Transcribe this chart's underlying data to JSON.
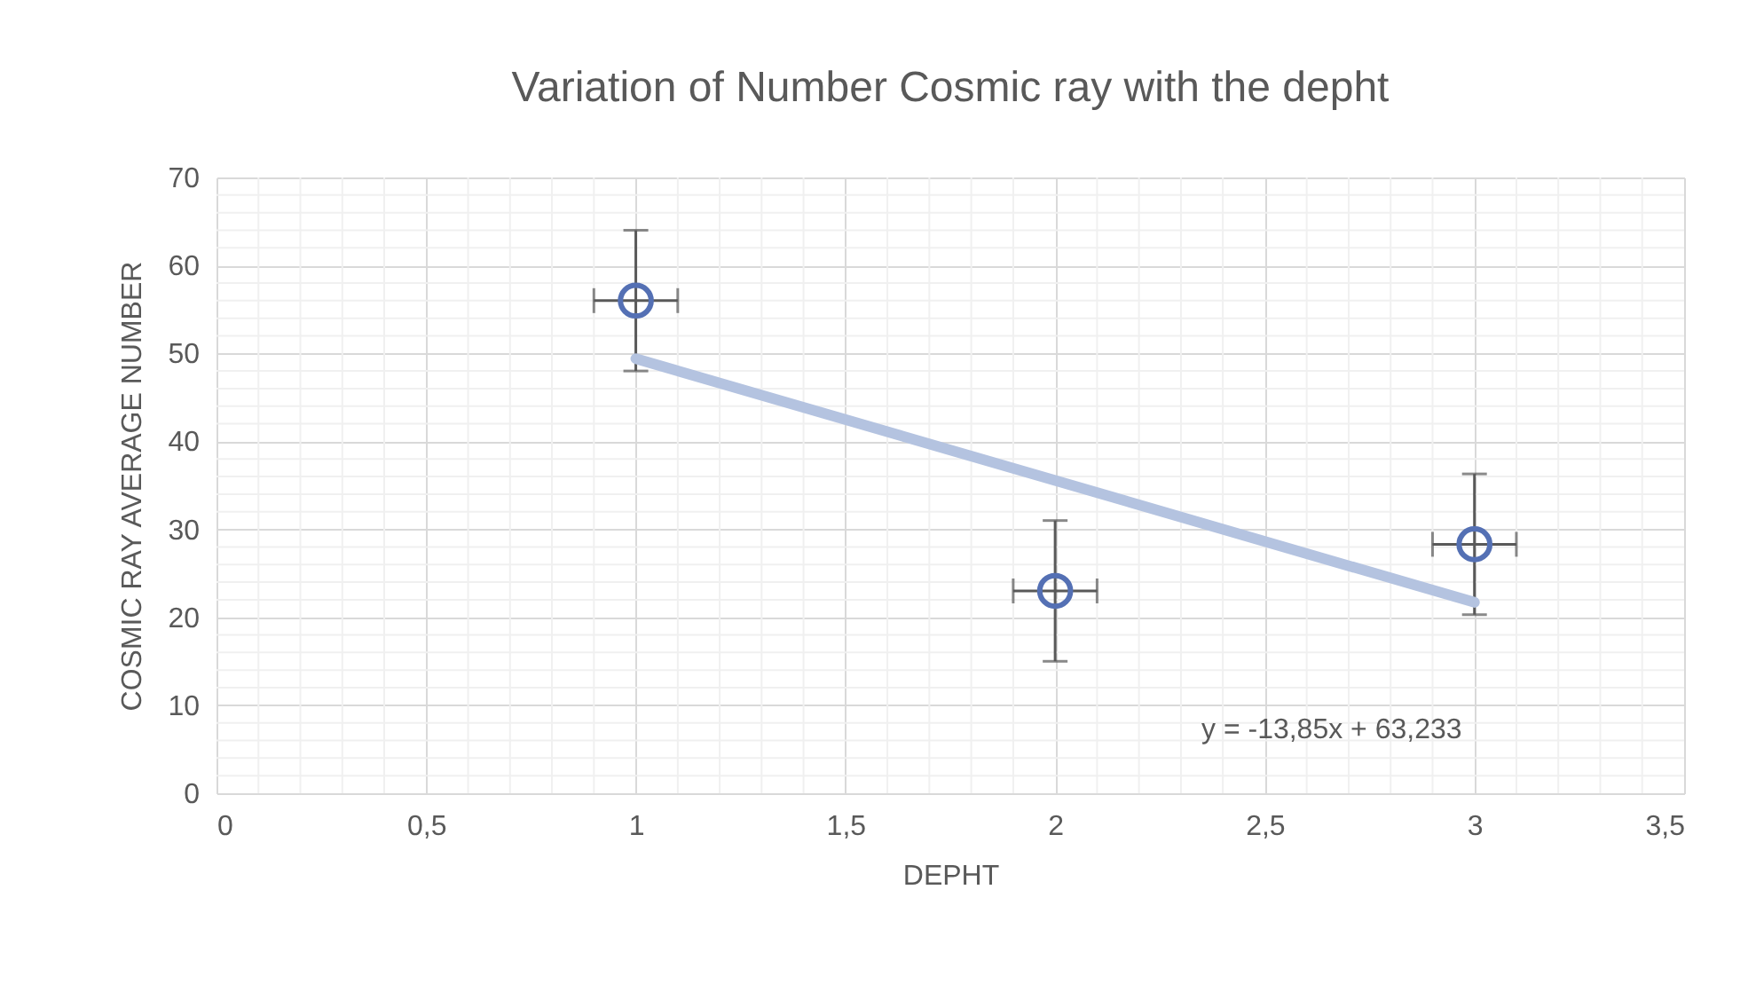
{
  "chart_data": {
    "type": "scatter",
    "title": "Variation of Number Cosmic ray with the depht",
    "xlabel": "DEPHT",
    "ylabel": "COSMIC RAY AVERAGE NUMBER",
    "x": [
      1,
      2,
      3
    ],
    "series": [
      {
        "color": "#5470b4",
        "marker": "circle",
        "values": [
          56,
          23,
          28.3
        ],
        "errors": [
          8,
          8,
          8
        ],
        "xerrors": [
          0.1,
          0.1,
          0.1
        ]
      },
      {
        "type": "line",
        "color": "#b4c3e0",
        "x": [
          1,
          3
        ],
        "values": [
          49.4,
          21.7
        ]
      }
    ],
    "xlim": [
      0,
      3.5
    ],
    "xticks": [
      0,
      {
        "value": 0.5,
        "label": "0,5"
      },
      1,
      {
        "value": 1.5,
        "label": "1,5"
      },
      2,
      {
        "value": 2.5,
        "label": "2,5"
      },
      3,
      {
        "value": 3.5,
        "label": "3,5"
      }
    ],
    "ylim": [
      0,
      70
    ],
    "yticks": [
      0,
      10,
      20,
      30,
      40,
      50,
      60,
      70
    ],
    "grid": true,
    "annotations": [
      "y = -13,85x + 63,233"
    ]
  }
}
